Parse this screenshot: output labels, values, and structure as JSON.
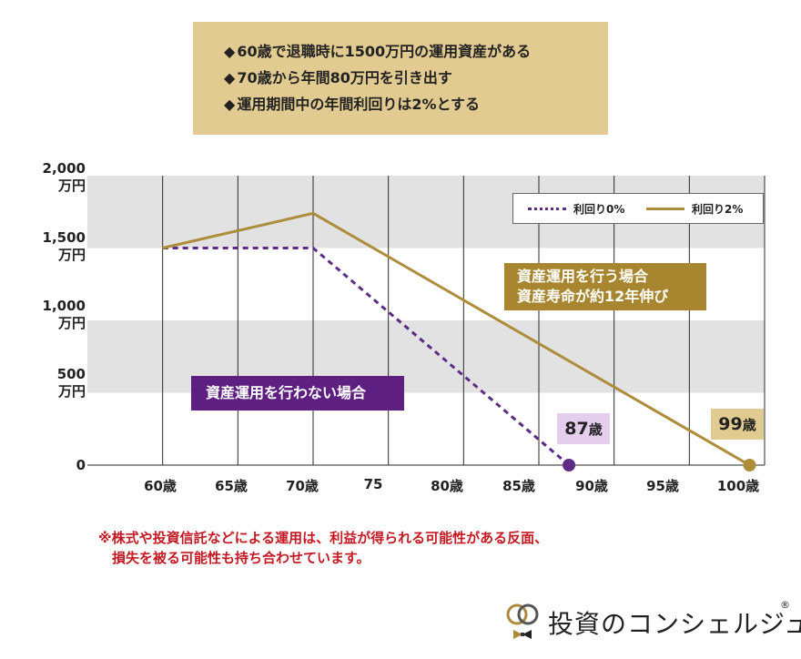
{
  "assumptions": [
    {
      "mark": "◆",
      "text": "60歳で退職時に1500万円の運用資産がある"
    },
    {
      "mark": "◆",
      "text": "70歳から年間80万円を引き出す"
    },
    {
      "mark": "◆",
      "text": "運用期間中の年間利回りは2%とする"
    }
  ],
  "chart_data": {
    "type": "line",
    "title": "",
    "xlabel": "",
    "ylabel": "",
    "xlim": [
      55,
      100
    ],
    "ylim": [
      0,
      2000
    ],
    "grid": true,
    "y_ticks": [
      {
        "value": 2000,
        "lines": [
          "2,000",
          "万円"
        ]
      },
      {
        "value": 1500,
        "lines": [
          "1,500",
          "万円"
        ]
      },
      {
        "value": 1000,
        "lines": [
          "1,000",
          "万円"
        ]
      },
      {
        "value": 500,
        "lines": [
          "500",
          "万円"
        ]
      },
      {
        "value": 0,
        "lines": [
          "0"
        ]
      }
    ],
    "x_ticks": [
      {
        "value": 60,
        "label": "60歳"
      },
      {
        "value": 65,
        "label": "65歳"
      },
      {
        "value": 70,
        "label": "70歳"
      },
      {
        "value": 75,
        "label": "75"
      },
      {
        "value": 80,
        "label": "80歳"
      },
      {
        "value": 85,
        "label": "85歳"
      },
      {
        "value": 90,
        "label": "90歳"
      },
      {
        "value": 95,
        "label": "95歳"
      },
      {
        "value": 100,
        "label": "100歳"
      }
    ],
    "series": [
      {
        "name": "利回り0%",
        "style": "dotted",
        "color": "#5d2a86",
        "x": [
          60,
          70,
          87
        ],
        "y": [
          1500,
          1500,
          0
        ],
        "end_marker_x": 87
      },
      {
        "name": "利回り2%",
        "style": "solid",
        "color": "#ad8c3a",
        "x": [
          60,
          70,
          99
        ],
        "y": [
          1500,
          1740,
          0
        ],
        "end_marker_x": 99
      }
    ],
    "legend": {
      "position": "top-right"
    },
    "annotations": {
      "invest": [
        "資産運用を行う場合",
        "資産寿命が約12年伸び"
      ],
      "no_invest": "資産運用を行わない場合",
      "age_87": {
        "number": "87",
        "unit": "歳"
      },
      "age_99": {
        "number": "99",
        "unit": "歳"
      }
    }
  },
  "disclaimer": [
    "※株式や投資信託などによる運用は、利益が得られる可能性がある反面、",
    "損失を被る可能性も持ち合わせています。"
  ],
  "logo": {
    "text": "投資のコンシェルジュ",
    "registered": "®"
  },
  "colors": {
    "gold": "#ad8c3a",
    "purple": "#5d2a86",
    "box_beige": "#e2cb90",
    "band_gray": "#e2e2e2",
    "red": "#c41a24"
  }
}
